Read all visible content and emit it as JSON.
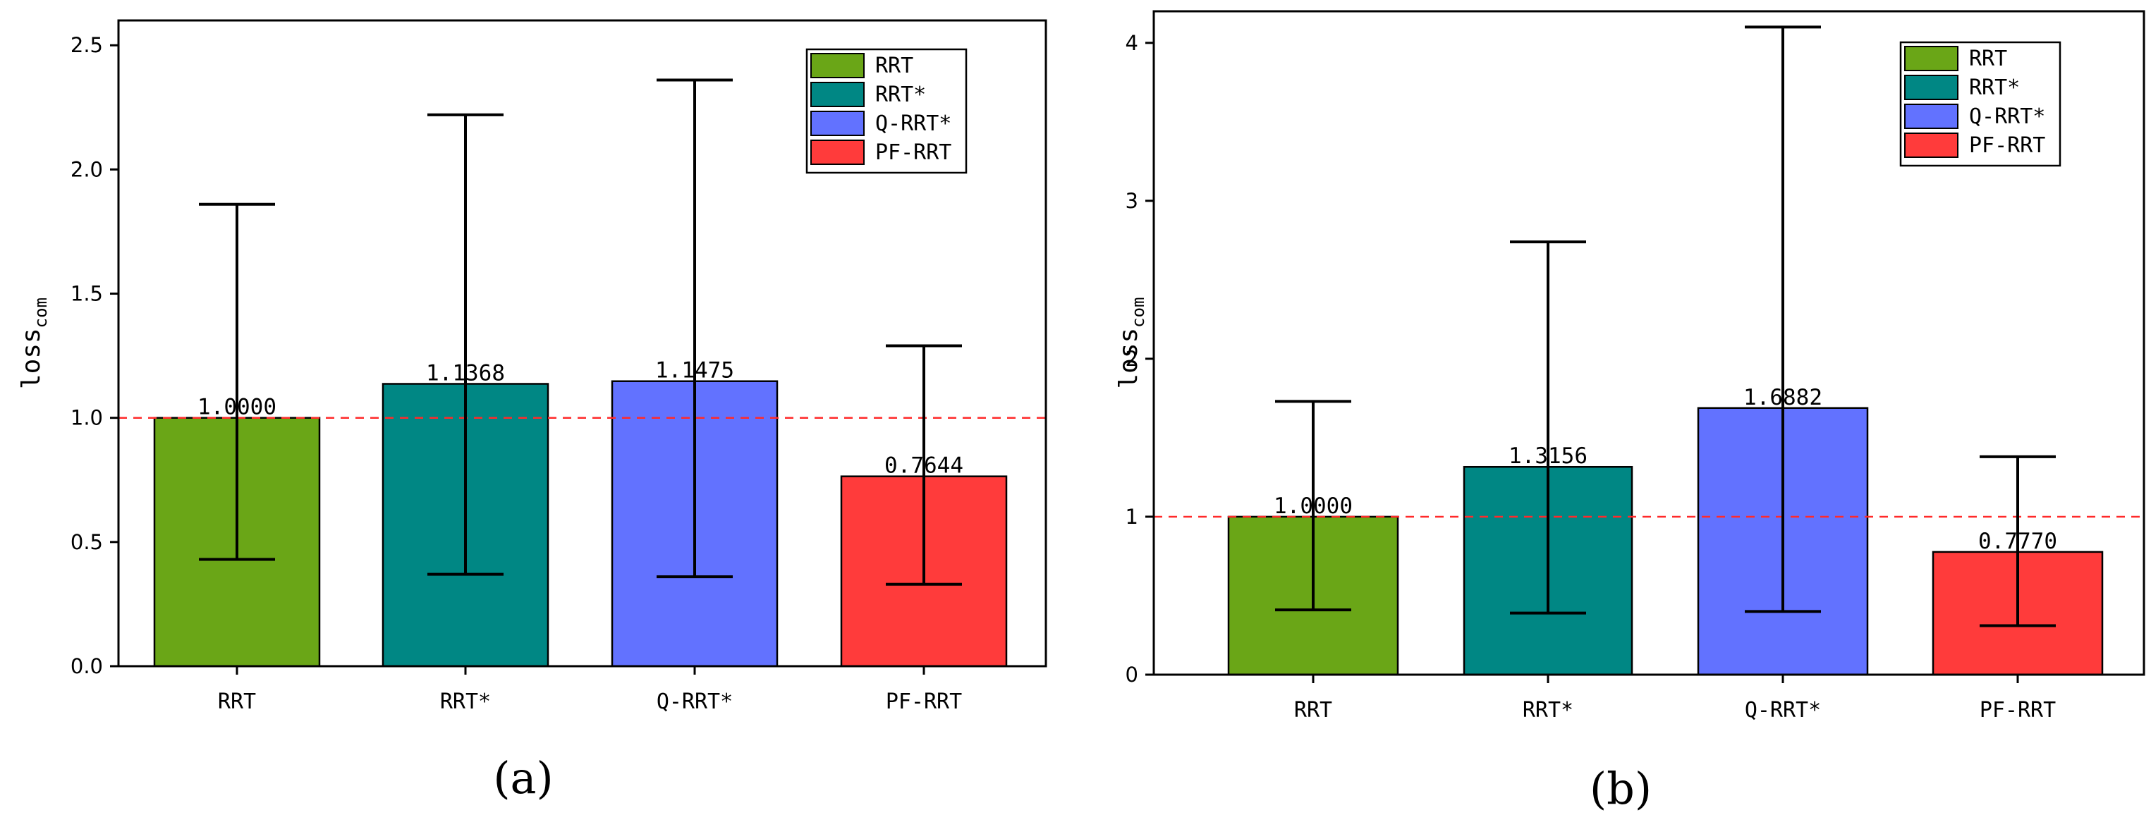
{
  "chart_data": [
    {
      "type": "bar",
      "panel_label": "(a)",
      "categories": [
        "RRT",
        "RRT*",
        "Q-RRT*",
        "PF-RRT"
      ],
      "values": [
        1.0,
        1.1368,
        1.1475,
        0.7644
      ],
      "value_labels": [
        "1.0000",
        "1.1368",
        "1.1475",
        "0.7644"
      ],
      "error_low": [
        0.43,
        0.37,
        0.36,
        0.33
      ],
      "error_high": [
        1.86,
        2.22,
        2.36,
        1.29
      ],
      "colors": [
        "#6aa617",
        "#008784",
        "#6272ff",
        "#ff3b3b"
      ],
      "ylabel_main": "loss",
      "ylabel_sub": "com",
      "xlabel": "",
      "ylim": [
        0,
        2.6
      ],
      "yticks": [
        0.0,
        0.5,
        1.0,
        1.5,
        2.0,
        2.5
      ],
      "ytick_labels": [
        "0.0",
        "0.5",
        "1.0",
        "1.5",
        "2.0",
        "2.5"
      ],
      "reference_line": 1.0,
      "legend": [
        "RRT",
        "RRT*",
        "Q-RRT*",
        "PF-RRT"
      ],
      "legend_position": "top-right"
    },
    {
      "type": "bar",
      "panel_label": "(b)",
      "categories": [
        "RRT",
        "RRT*",
        "Q-RRT*",
        "PF-RRT"
      ],
      "values": [
        1.0,
        1.3156,
        1.6882,
        0.777
      ],
      "value_labels": [
        "1.0000",
        "1.3156",
        "1.6882",
        "0.7770"
      ],
      "error_low": [
        0.41,
        0.39,
        0.4,
        0.31
      ],
      "error_high": [
        1.73,
        2.74,
        4.1,
        1.38
      ],
      "colors": [
        "#6aa617",
        "#008784",
        "#6272ff",
        "#ff3b3b"
      ],
      "ylabel_main": "loss",
      "ylabel_sub": "com",
      "xlabel": "",
      "ylim": [
        0,
        4.2
      ],
      "yticks": [
        0,
        1,
        2,
        3,
        4
      ],
      "ytick_labels": [
        "0",
        "1",
        "2",
        "3",
        "4"
      ],
      "reference_line": 1.0,
      "legend": [
        "RRT",
        "RRT*",
        "Q-RRT*",
        "PF-RRT"
      ],
      "legend_position": "top-right"
    }
  ]
}
